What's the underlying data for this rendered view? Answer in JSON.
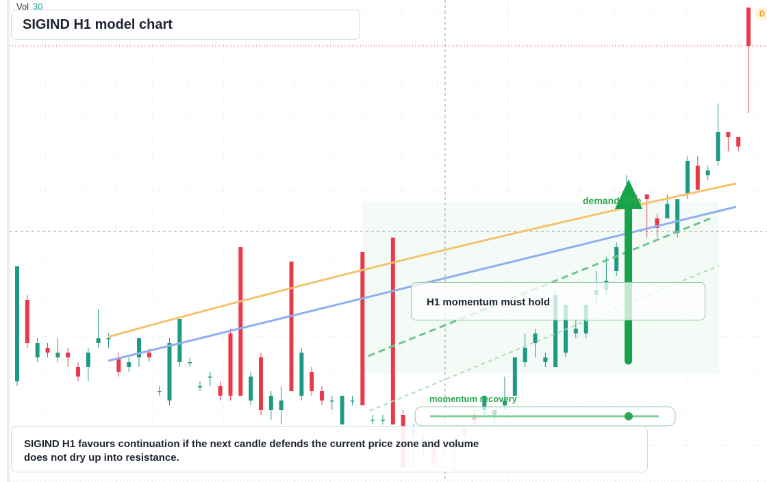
{
  "chart_data": {
    "type": "candlestick",
    "title": "SIGIND H1 model chart",
    "volume_label": "Vol",
    "volume_value": 30,
    "badge": "D",
    "up_color": "#1f9a82",
    "down_color": "#e83a4b",
    "ylim": [
      0,
      100
    ],
    "grid": true,
    "open": [
      21,
      38,
      26,
      28,
      26,
      27,
      24,
      24,
      29,
      30,
      26,
      24,
      26,
      27,
      19,
      17,
      25,
      25,
      20,
      22,
      20,
      31,
      49,
      17,
      26,
      15,
      15,
      46,
      18,
      23,
      19,
      17,
      12,
      17,
      48,
      13,
      13,
      51,
      14,
      10,
      8,
      9,
      8,
      7,
      10,
      14,
      15,
      14,
      16,
      18,
      25,
      29,
      25,
      24,
      27,
      31,
      31,
      39,
      40,
      44,
      50,
      59,
      60,
      55,
      55,
      52,
      60,
      66,
      64,
      67,
      73,
      72,
      99
    ],
    "high": [
      45,
      39,
      30,
      29,
      30,
      28,
      25,
      28,
      36,
      31,
      27,
      26,
      30,
      28,
      20,
      30,
      34,
      26,
      21,
      23,
      21,
      32,
      49,
      23,
      27,
      19,
      20,
      46,
      28,
      24,
      20,
      18,
      18,
      18,
      48,
      14,
      14,
      51,
      15,
      12,
      10,
      10,
      9,
      9,
      11,
      15,
      18,
      15,
      22,
      26,
      31,
      32,
      27,
      40,
      36,
      34,
      37,
      44,
      47,
      50,
      64,
      60,
      60,
      56,
      60,
      59,
      68,
      68,
      66,
      79,
      73,
      72,
      99
    ],
    "low": [
      20,
      28,
      25,
      26,
      25,
      24,
      21,
      21,
      28,
      28,
      22,
      23,
      24,
      25,
      18,
      16,
      24,
      24,
      19,
      20,
      17,
      17,
      18,
      16,
      14,
      13,
      12,
      19,
      17,
      18,
      16,
      15,
      12,
      16,
      16,
      12,
      12,
      12,
      2,
      3,
      5,
      3,
      6,
      2,
      8,
      12,
      14,
      12,
      15,
      18,
      24,
      26,
      24,
      24,
      26,
      30,
      30,
      37,
      39,
      43,
      49,
      57,
      51,
      51,
      55,
      51,
      59,
      61,
      63,
      66,
      69,
      69,
      77
    ],
    "close": [
      45,
      29,
      29,
      27,
      27,
      26,
      22,
      27,
      30,
      30,
      23,
      25,
      30,
      26,
      19,
      29,
      34,
      25,
      20,
      22,
      18,
      18,
      18,
      22,
      15,
      18,
      17,
      19,
      27,
      19,
      17,
      17,
      18,
      17,
      16,
      13,
      13,
      12,
      3,
      11,
      9,
      4,
      8,
      8,
      11,
      13,
      18,
      15,
      17,
      26,
      28,
      31,
      26,
      39,
      37,
      32,
      37,
      40,
      42,
      49,
      60,
      58,
      59,
      53,
      58,
      59,
      67,
      61,
      65,
      73,
      72,
      70,
      91
    ]
  },
  "annotations": {
    "hold": "H1 momentum must hold",
    "demand": "demand side",
    "recovery": "momentum recovery",
    "note": "SIGIND H1 favours continuation if the next candle defends the current price zone and volume does not dry up into resistance."
  }
}
